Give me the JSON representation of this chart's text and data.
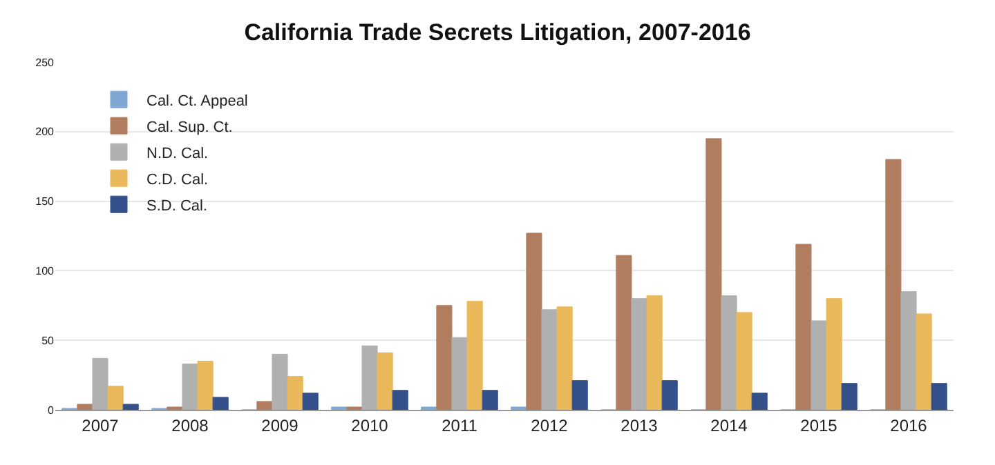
{
  "chart_data": {
    "type": "bar",
    "title": "California Trade Secrets Litigation, 2007-2016",
    "categories": [
      "2007",
      "2008",
      "2009",
      "2010",
      "2011",
      "2012",
      "2013",
      "2014",
      "2015",
      "2016"
    ],
    "series": [
      {
        "name": "Cal. Ct. Appeal",
        "color": "#7fa7d4",
        "values": [
          1,
          1,
          0,
          2,
          2,
          2,
          0,
          0,
          0,
          0
        ]
      },
      {
        "name": "Cal. Sup. Ct.",
        "color": "#b07d5e",
        "values": [
          4,
          2,
          6,
          2,
          75,
          127,
          111,
          195,
          119,
          180
        ]
      },
      {
        "name": "N.D. Cal.",
        "color": "#b0b0b0",
        "values": [
          37,
          33,
          40,
          46,
          52,
          72,
          80,
          82,
          64,
          85
        ]
      },
      {
        "name": "C.D. Cal.",
        "color": "#e8b85a",
        "values": [
          17,
          35,
          24,
          41,
          78,
          74,
          82,
          70,
          80,
          69
        ]
      },
      {
        "name": "S.D. Cal.",
        "color": "#34508a",
        "values": [
          4,
          9,
          12,
          14,
          14,
          21,
          21,
          12,
          19,
          19
        ]
      }
    ],
    "ylim": [
      0,
      250
    ],
    "yticks": [
      0,
      50,
      100,
      150,
      200,
      250
    ],
    "grid": "y",
    "legend": "top left"
  }
}
